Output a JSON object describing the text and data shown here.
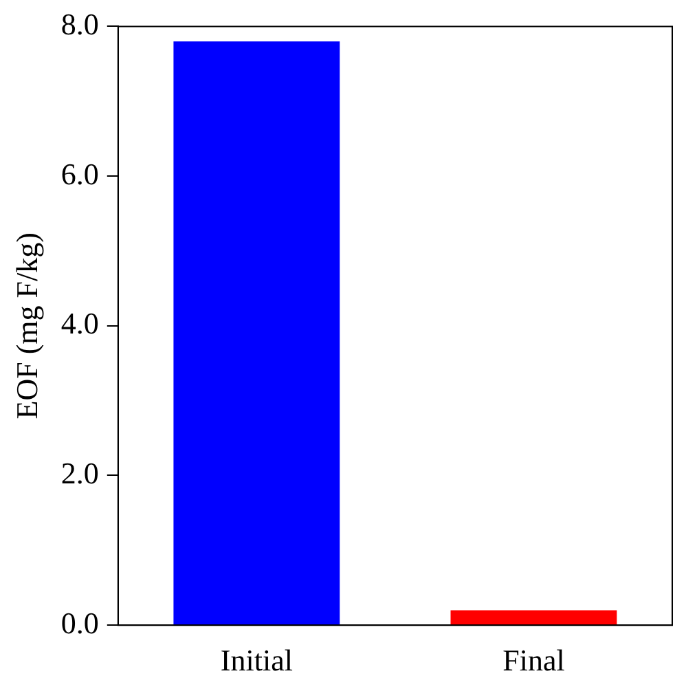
{
  "chart_data": {
    "type": "bar",
    "ylabel": "EOF (mg F/kg)",
    "categories": [
      "Initial",
      "Final"
    ],
    "values": [
      7.8,
      0.2
    ],
    "colors": [
      "#0000ff",
      "#ff0000"
    ],
    "ylim": [
      0,
      8
    ],
    "yticks": [
      {
        "value": 0,
        "label": "0.0"
      },
      {
        "value": 2,
        "label": "2.0"
      },
      {
        "value": 4,
        "label": "4.0"
      },
      {
        "value": 6,
        "label": "6.0"
      },
      {
        "value": 8,
        "label": "8.0"
      }
    ],
    "grid": false,
    "legend": false
  }
}
